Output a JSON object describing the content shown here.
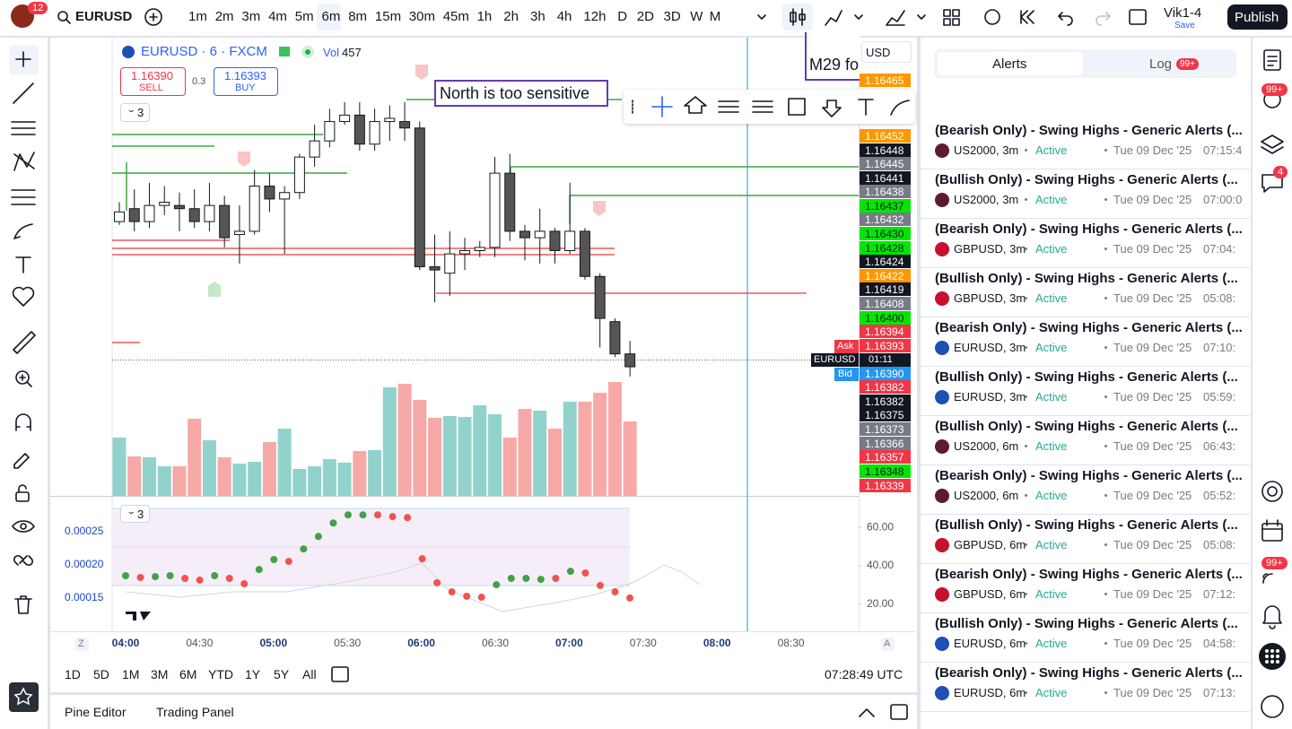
{
  "topbar": {
    "notifications": "12",
    "symbol": "EURUSD",
    "intervals": [
      "1m",
      "2m",
      "3m",
      "4m",
      "5m",
      "6m",
      "8m",
      "15m",
      "30m",
      "45m",
      "1h",
      "2h",
      "3h",
      "4h",
      "12h",
      "D",
      "2D",
      "3D",
      "W",
      "M"
    ],
    "active_interval": 5,
    "layout_name": "Vik1-4",
    "save": "Save",
    "publish": "Publish"
  },
  "chart": {
    "legend": {
      "symbol": "EURUSD · 6 · FXCM",
      "vol_label": "Vol",
      "vol_value": "457",
      "sell_price": "1.16390",
      "sell": "SELL",
      "spread": "0.3",
      "buy_price": "1.16393",
      "buy": "BUY",
      "indicators_count": "3"
    },
    "annotations": [
      "North is too sensitive",
      "M29 fo"
    ],
    "currency": "USD",
    "ylim": [
      1.16336,
      1.16478
    ],
    "price_labels": [
      {
        "value": 1.16465,
        "label": "1.16465",
        "color": "#ff9800"
      },
      {
        "value": 1.16452,
        "label": "1.16452",
        "color": "#ff9800"
      },
      {
        "value": 1.16448,
        "label": "1.16448",
        "color": "#131722"
      },
      {
        "value": 1.16445,
        "label": "1.16445",
        "color": "#787b86"
      },
      {
        "value": 1.16441,
        "label": "1.16441",
        "color": "#131722"
      },
      {
        "value": 1.16438,
        "label": "1.16438",
        "color": "#787b86"
      },
      {
        "value": 1.16437,
        "label": "1.16437",
        "color": "#00e600"
      },
      {
        "value": 1.16432,
        "label": "1.16432",
        "color": "#787b86"
      },
      {
        "value": 1.1643,
        "label": "1.16430",
        "color": "#00e600"
      },
      {
        "value": 1.16428,
        "label": "1.16428",
        "color": "#00e600"
      },
      {
        "value": 1.16424,
        "label": "1.16424",
        "color": "#131722"
      },
      {
        "value": 1.16422,
        "label": "1.16422",
        "color": "#ff9800"
      },
      {
        "value": 1.16419,
        "label": "1.16419",
        "color": "#131722"
      },
      {
        "value": 1.16408,
        "label": "1.16408",
        "color": "#787b86"
      },
      {
        "value": 1.164,
        "label": "1.16400",
        "color": "#00e600"
      },
      {
        "value": 1.16394,
        "label": "1.16394",
        "color": "#f23645"
      },
      {
        "value": 1.16393,
        "label": "1.16393",
        "color": "#f23645"
      },
      {
        "value": 1.1639,
        "label": "1.16390",
        "color": "#2196f3"
      },
      {
        "value": 1.16382,
        "label": "1.16382",
        "color": "#f23645"
      },
      {
        "value": 1.16382,
        "label": "1.16382",
        "color": "#131722"
      },
      {
        "value": 1.16375,
        "label": "1.16375",
        "color": "#131722"
      },
      {
        "value": 1.16373,
        "label": "1.16373",
        "color": "#787b86"
      },
      {
        "value": 1.16366,
        "label": "1.16366",
        "color": "#787b86"
      },
      {
        "value": 1.16357,
        "label": "1.16357",
        "color": "#f23645"
      },
      {
        "value": 1.16348,
        "label": "1.16348",
        "color": "#00e600"
      },
      {
        "value": 1.16339,
        "label": "1.16339",
        "color": "#f23645"
      }
    ],
    "ask": "Ask",
    "bid": "Bid",
    "countdown_symbol": "EURUSD",
    "countdown": "01:11",
    "up_color": "#ffffff",
    "down_color": "#555555",
    "candles": [
      {
        "o": 1.16421,
        "h": 1.16427,
        "l": 1.1642,
        "c": 1.16424
      },
      {
        "o": 1.16425,
        "h": 1.16431,
        "l": 1.16418,
        "c": 1.16421
      },
      {
        "o": 1.16421,
        "h": 1.16433,
        "l": 1.16419,
        "c": 1.16426
      },
      {
        "o": 1.16426,
        "h": 1.16432,
        "l": 1.16423,
        "c": 1.16427
      },
      {
        "o": 1.16426,
        "h": 1.1643,
        "l": 1.16418,
        "c": 1.16425
      },
      {
        "o": 1.16425,
        "h": 1.16431,
        "l": 1.16419,
        "c": 1.16421
      },
      {
        "o": 1.16421,
        "h": 1.16433,
        "l": 1.16418,
        "c": 1.16426
      },
      {
        "o": 1.16426,
        "h": 1.16429,
        "l": 1.16413,
        "c": 1.16416
      },
      {
        "o": 1.16417,
        "h": 1.16426,
        "l": 1.16408,
        "c": 1.16418
      },
      {
        "o": 1.16418,
        "h": 1.16437,
        "l": 1.16417,
        "c": 1.16432
      },
      {
        "o": 1.16432,
        "h": 1.16436,
        "l": 1.16424,
        "c": 1.16428
      },
      {
        "o": 1.16428,
        "h": 1.16432,
        "l": 1.16411,
        "c": 1.1643
      },
      {
        "o": 1.1643,
        "h": 1.16442,
        "l": 1.16428,
        "c": 1.16441
      },
      {
        "o": 1.16441,
        "h": 1.16451,
        "l": 1.16438,
        "c": 1.16446
      },
      {
        "o": 1.16446,
        "h": 1.16456,
        "l": 1.16444,
        "c": 1.16452
      },
      {
        "o": 1.16452,
        "h": 1.16458,
        "l": 1.16451,
        "c": 1.16454
      },
      {
        "o": 1.16454,
        "h": 1.16458,
        "l": 1.16443,
        "c": 1.16445
      },
      {
        "o": 1.16445,
        "h": 1.16456,
        "l": 1.16443,
        "c": 1.16452
      },
      {
        "o": 1.16452,
        "h": 1.16457,
        "l": 1.16446,
        "c": 1.16453
      },
      {
        "o": 1.16452,
        "h": 1.16458,
        "l": 1.16446,
        "c": 1.1645
      },
      {
        "o": 1.1645,
        "h": 1.16452,
        "l": 1.16406,
        "c": 1.16407
      },
      {
        "o": 1.16407,
        "h": 1.16417,
        "l": 1.16396,
        "c": 1.16406
      },
      {
        "o": 1.16405,
        "h": 1.16418,
        "l": 1.16398,
        "c": 1.16411
      },
      {
        "o": 1.16411,
        "h": 1.16416,
        "l": 1.16406,
        "c": 1.16412
      },
      {
        "o": 1.16412,
        "h": 1.16415,
        "l": 1.1641,
        "c": 1.16413
      },
      {
        "o": 1.16413,
        "h": 1.16441,
        "l": 1.1641,
        "c": 1.16436
      },
      {
        "o": 1.16436,
        "h": 1.16442,
        "l": 1.16415,
        "c": 1.16418
      },
      {
        "o": 1.16418,
        "h": 1.1642,
        "l": 1.16409,
        "c": 1.16416
      },
      {
        "o": 1.16416,
        "h": 1.16425,
        "l": 1.16408,
        "c": 1.16418
      },
      {
        "o": 1.16418,
        "h": 1.16419,
        "l": 1.16408,
        "c": 1.16412
      },
      {
        "o": 1.16412,
        "h": 1.16433,
        "l": 1.16411,
        "c": 1.16418
      },
      {
        "o": 1.16418,
        "h": 1.16419,
        "l": 1.16403,
        "c": 1.16404
      },
      {
        "o": 1.16404,
        "h": 1.16405,
        "l": 1.16382,
        "c": 1.16391
      },
      {
        "o": 1.1639,
        "h": 1.16391,
        "l": 1.16379,
        "c": 1.1638
      },
      {
        "o": 1.1638,
        "h": 1.16384,
        "l": 1.16373,
        "c": 1.16376
      }
    ],
    "volume_ylim": [
      0,
      511
    ],
    "volumes": [
      65,
      44,
      43,
      33,
      33,
      86,
      62,
      43,
      36,
      38,
      60,
      75,
      30,
      33,
      41,
      37,
      50,
      51,
      121,
      125,
      107,
      87,
      89,
      88,
      101,
      91,
      65,
      97,
      95,
      75,
      105,
      105,
      115,
      127,
      83
    ],
    "volume_up_color": "#92d2cc",
    "volume_down_color": "#f7a9a7",
    "oscillator": {
      "indicators_count": "3",
      "ylim": [
        6,
        75
      ],
      "yticks": [
        {
          "value": 60,
          "label": "60.00"
        },
        {
          "value": 40,
          "label": "40.00"
        },
        {
          "value": 20,
          "label": "20.00"
        }
      ],
      "left_ylim": [
        0.0001,
        0.0003
      ],
      "left_ticks": [
        0.00025,
        {
          "value": 0.0002,
          "label": "0.00020"
        },
        0.00015
      ],
      "values": [
        34.9,
        34.0,
        34.4,
        34.9,
        33.5,
        32.6,
        34.9,
        33.5,
        30.7,
        38.1,
        43.3,
        42.3,
        48.8,
        55.3,
        62.3,
        66.5,
        66.5,
        66.5,
        65.6,
        65.1,
        43.7,
        31.2,
        26.5,
        24.2,
        23.7,
        30.2,
        33.5,
        33.5,
        33.0,
        33.5,
        37.2,
        36.3,
        29.8,
        26.5,
        23.3
      ],
      "colors": [
        "#43a047",
        "#ef5350",
        "#43a047",
        "#43a047",
        "#ef5350",
        "#ef5350",
        "#43a047",
        "#ef5350",
        "#ef5350",
        "#43a047",
        "#43a047",
        "#ef5350",
        "#43a047",
        "#43a047",
        "#43a047",
        "#43a047",
        "#43a047",
        "#ef5350",
        "#ef5350",
        "#ef5350",
        "#ef5350",
        "#ef5350",
        "#ef5350",
        "#ef5350",
        "#ef5350",
        "#43a047",
        "#43a047",
        "#43a047",
        "#43a047",
        "#ef5350",
        "#43a047",
        "#ef5350",
        "#ef5350",
        "#ef5350",
        "#ef5350"
      ]
    },
    "time_axis": [
      {
        "label": "04:00",
        "bold": true
      },
      {
        "label": "04:30",
        "bold": false
      },
      {
        "label": "05:00",
        "bold": true
      },
      {
        "label": "05:30",
        "bold": false
      },
      {
        "label": "06:00",
        "bold": true
      },
      {
        "label": "06:30",
        "bold": false
      },
      {
        "label": "07:00",
        "bold": true
      },
      {
        "label": "07:30",
        "bold": false
      },
      {
        "label": "08:00",
        "bold": true
      },
      {
        "label": "08:30",
        "bold": false
      }
    ],
    "axis_buttons": [
      "Z",
      "A"
    ]
  },
  "range_bar": {
    "ranges": [
      "1D",
      "5D",
      "1M",
      "3M",
      "6M",
      "YTD",
      "1Y",
      "5Y",
      "All"
    ],
    "clock": "07:28:49 UTC"
  },
  "bottom_panel": {
    "tabs": [
      "Pine Editor",
      "Trading Panel"
    ]
  },
  "alerts": {
    "tabs": [
      "Alerts",
      "Log"
    ],
    "log_badge": "99+",
    "items": [
      {
        "title": "(Bearish Only) - Swing Highs - Generic Alerts (...",
        "symbol": "US2000, 3m",
        "status": "Active",
        "date": "Tue 09 Dec '25",
        "time": "07:15:4",
        "icon_color": "#5c1a33"
      },
      {
        "title": "(Bullish Only) - Swing Highs - Generic Alerts (...",
        "symbol": "US2000, 3m",
        "status": "Active",
        "date": "Tue 09 Dec '25",
        "time": "07:00:0",
        "icon_color": "#5c1a33"
      },
      {
        "title": "(Bearish Only) - Swing Highs - Generic Alerts (...",
        "symbol": "GBPUSD, 3m",
        "status": "Active",
        "date": "Tue 09 Dec '25",
        "time": "07:04:",
        "icon_color": "#c8102e"
      },
      {
        "title": "(Bullish Only) - Swing Highs - Generic Alerts (...",
        "symbol": "GBPUSD, 3m",
        "status": "Active",
        "date": "Tue 09 Dec '25",
        "time": "05:08:",
        "icon_color": "#c8102e"
      },
      {
        "title": "(Bearish Only) - Swing Highs - Generic Alerts (...",
        "symbol": "EURUSD, 3m",
        "status": "Active",
        "date": "Tue 09 Dec '25",
        "time": "07:10:",
        "icon_color": "#1e4fb4"
      },
      {
        "title": "(Bullish Only) - Swing Highs - Generic Alerts (...",
        "symbol": "EURUSD, 3m",
        "status": "Active",
        "date": "Tue 09 Dec '25",
        "time": "05:59:",
        "icon_color": "#1e4fb4"
      },
      {
        "title": "(Bullish Only) - Swing Highs - Generic Alerts (...",
        "symbol": "US2000, 6m",
        "status": "Active",
        "date": "Tue 09 Dec '25",
        "time": "06:43:",
        "icon_color": "#5c1a33"
      },
      {
        "title": "(Bearish Only) - Swing Highs - Generic Alerts (...",
        "symbol": "US2000, 6m",
        "status": "Active",
        "date": "Tue 09 Dec '25",
        "time": "05:52:",
        "icon_color": "#5c1a33"
      },
      {
        "title": "(Bullish Only) - Swing Highs - Generic Alerts (...",
        "symbol": "GBPUSD, 6m",
        "status": "Active",
        "date": "Tue 09 Dec '25",
        "time": "05:08:",
        "icon_color": "#c8102e"
      },
      {
        "title": "(Bearish Only) - Swing Highs - Generic Alerts (...",
        "symbol": "GBPUSD, 6m",
        "status": "Active",
        "date": "Tue 09 Dec '25",
        "time": "07:12:",
        "icon_color": "#c8102e"
      },
      {
        "title": "(Bullish Only) - Swing Highs - Generic Alerts (...",
        "symbol": "EURUSD, 6m",
        "status": "Active",
        "date": "Tue 09 Dec '25",
        "time": "04:58:",
        "icon_color": "#1e4fb4"
      },
      {
        "title": "(Bearish Only) - Swing Highs - Generic Alerts (...",
        "symbol": "EURUSD, 6m",
        "status": "Active",
        "date": "Tue 09 Dec '25",
        "time": "07:13:",
        "icon_color": "#1e4fb4"
      }
    ]
  },
  "sidebar": {
    "badges": [
      "99+",
      "4",
      "99+"
    ]
  }
}
